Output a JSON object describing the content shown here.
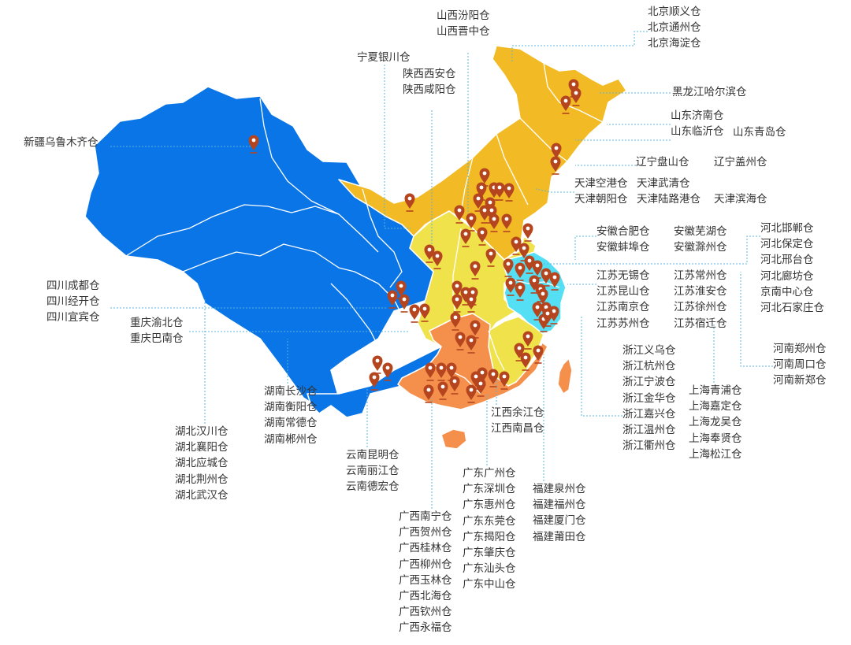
{
  "colors": {
    "blue": "#0a75e6",
    "orange_yellow": "#f2bb25",
    "yellow": "#f0e24a",
    "orange": "#f4904c",
    "cyan": "#55dff4",
    "marker": "#b4451f",
    "leader_line": "#5ab4dc",
    "text": "#333333"
  },
  "labels": {
    "xinjiang": [
      "新疆乌鲁木齐仓"
    ],
    "ningxia": [
      "宁夏银川仓"
    ],
    "shaanxi": [
      "陕西西安仓",
      "陕西咸阳仓"
    ],
    "shanxi": [
      "山西汾阳仓",
      "山西晋中仓"
    ],
    "beijing": [
      "北京顺义仓",
      "北京通州仓",
      "北京海淀仓"
    ],
    "heilongjiang": [
      "黑龙江哈尔滨仓"
    ],
    "shandong_a": [
      "山东济南仓",
      "山东临沂仓"
    ],
    "shandong_b": [
      "山东青岛仓"
    ],
    "liaoning_a": [
      "辽宁盘山仓"
    ],
    "liaoning_b": [
      "辽宁盖州仓"
    ],
    "tianjin_a": [
      "天津空港仓",
      "天津朝阳仓"
    ],
    "tianjin_b": [
      "天津武清仓",
      "天津陆路港仓"
    ],
    "tianjin_c": [
      "天津滨海仓"
    ],
    "anhui_a": [
      "安徽合肥仓",
      "安徽蚌埠仓"
    ],
    "anhui_b": [
      "安徽芜湖仓",
      "安徽滁州仓"
    ],
    "hebei": [
      "河北邯郸仓",
      "河北保定仓",
      "河北邢台仓",
      "河北廊坊仓",
      "京南中心仓",
      "河北石家庄仓"
    ],
    "jiangsu_a": [
      "江苏无锡仓",
      "江苏昆山仓",
      "江苏南京仓",
      "江苏苏州仓"
    ],
    "jiangsu_b": [
      "江苏常州仓",
      "江苏淮安仓",
      "江苏徐州仓",
      "江苏宿迁仓"
    ],
    "sichuan": [
      "四川成都仓",
      "四川经开仓",
      "四川宜宾仓"
    ],
    "chongqing": [
      "重庆渝北仓",
      "重庆巴南仓"
    ],
    "henan": [
      "河南郑州仓",
      "河南周口仓",
      "河南新郑仓"
    ],
    "zhejiang": [
      "浙江义乌仓",
      "浙江杭州仓",
      "浙江宁波仓",
      "浙江金华仓",
      "浙江嘉兴仓",
      "浙江温州仓",
      "浙江衢州仓"
    ],
    "shanghai": [
      "上海青浦仓",
      "上海嘉定仓",
      "上海龙吴仓",
      "上海奉贤仓",
      "上海松江仓"
    ],
    "hunan": [
      "湖南长沙仓",
      "湖南衡阳仓",
      "湖南常德仓",
      "湖南郴州仓"
    ],
    "jiangxi": [
      "江西余江仓",
      "江西南昌仓"
    ],
    "hubei": [
      "湖北汉川仓",
      "湖北襄阳仓",
      "湖北应城仓",
      "湖北荆州仓",
      "湖北武汉仓"
    ],
    "yunnan": [
      "云南昆明仓",
      "云南丽江仓",
      "云南德宏仓"
    ],
    "guangdong": [
      "广东广州仓",
      "广东深圳仓",
      "广东惠州仓",
      "广东东莞仓",
      "广东揭阳仓",
      "广东肇庆仓",
      "广东汕头仓",
      "广东中山仓"
    ],
    "fujian": [
      "福建泉州仓",
      "福建福州仓",
      "福建厦门仓",
      "福建莆田仓"
    ],
    "guangxi": [
      "广西南宁仓",
      "广西贺州仓",
      "广西桂林仓",
      "广西柳州仓",
      "广西玉林仓",
      "广西北海仓",
      "广西钦州仓",
      "广西永福仓"
    ]
  },
  "icons": {
    "marker": "map-pin-icon"
  }
}
